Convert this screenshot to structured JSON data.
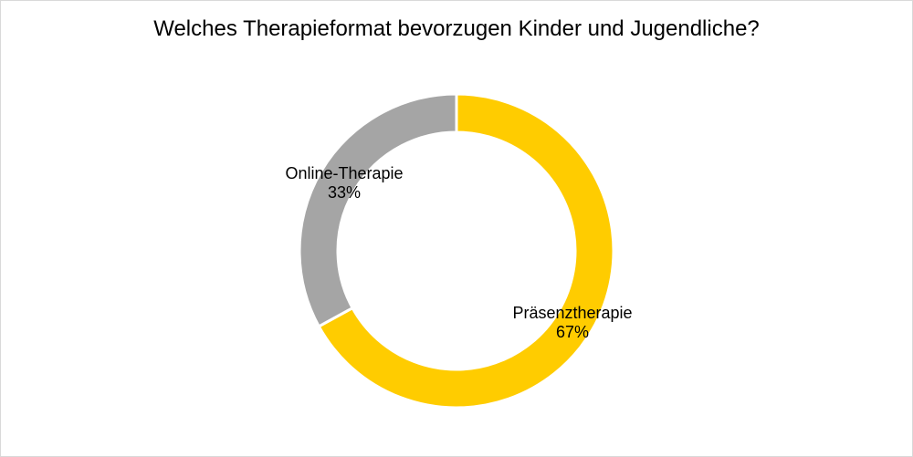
{
  "chart_data": {
    "type": "pie",
    "variant": "doughnut",
    "title": "Welches Therapieformat bevorzugen Kinder und Jugendliche?",
    "categories": [
      "Präsenztherapie",
      "Online-Therapie"
    ],
    "values": [
      67,
      33
    ],
    "unit": "%",
    "colors": [
      "#FFCC00",
      "#A5A5A5"
    ],
    "data_labels": [
      {
        "category": "Präsenztherapie",
        "value": "67%"
      },
      {
        "category": "Online-Therapie",
        "value": "33%"
      }
    ],
    "legend": "none",
    "start_angle": "12 o'clock, clockwise"
  },
  "labels": {
    "online_name": "Online-Therapie",
    "online_pct": "33%",
    "praesenz_name": "Präsenztherapie",
    "praesenz_pct": "67%"
  }
}
